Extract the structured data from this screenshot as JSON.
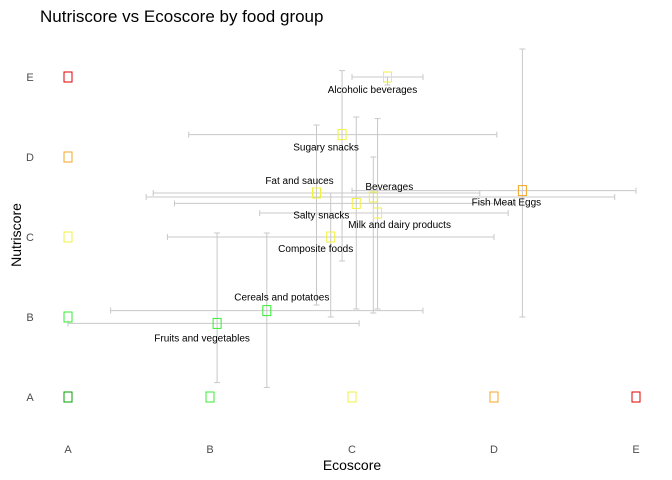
{
  "chart_data": {
    "type": "scatter",
    "title": "Nutriscore vs Ecoscore by food group",
    "xlabel": "Ecoscore",
    "ylabel": "Nutriscore",
    "x_ticks": [
      "A",
      "B",
      "C",
      "D",
      "E"
    ],
    "y_ticks": [
      "A",
      "B",
      "C",
      "D",
      "E"
    ],
    "xlim": [
      0.7,
      5.1
    ],
    "ylim": [
      0.6,
      5.4
    ],
    "grid": false,
    "axis_marker_colors": {
      "A": "#00a000",
      "B": "#33ee33",
      "C": "#f0f040",
      "D": "#f5a623",
      "E": "#e00000"
    },
    "error_bar_color": "#c8c8c8",
    "points": [
      {
        "label": "Fruits and vegetables",
        "x": 2.05,
        "y": 1.92,
        "x_err": [
          1.0,
          3.05
        ],
        "y_err": [
          1.18,
          3.05
        ],
        "color": "#33ee33"
      },
      {
        "label": "Cereals and potatoes",
        "x": 2.4,
        "y": 2.08,
        "x_err": [
          1.3,
          3.5
        ],
        "y_err": [
          1.12,
          3.05
        ],
        "color": "#33ee33"
      },
      {
        "label": "Composite foods",
        "x": 2.85,
        "y": 3.0,
        "x_err": [
          1.7,
          4.0
        ],
        "y_err": [
          2.0,
          3.55
        ],
        "color": "#f0f040"
      },
      {
        "label": "Fat and sauces",
        "x": 2.75,
        "y": 3.55,
        "x_err": [
          1.6,
          3.9
        ],
        "y_err": [
          2.15,
          4.4
        ],
        "color": "#f0f040"
      },
      {
        "label": "Salty snacks",
        "x": 3.03,
        "y": 3.42,
        "x_err": [
          1.75,
          4.15
        ],
        "y_err": [
          2.1,
          4.5
        ],
        "color": "#f0f040"
      },
      {
        "label": "Beverages",
        "x": 3.15,
        "y": 3.5,
        "x_err": [
          1.55,
          4.85
        ],
        "y_err": [
          2.05,
          4.0
        ],
        "color": "#f0f040"
      },
      {
        "label": "Milk and dairy products",
        "x": 3.18,
        "y": 3.3,
        "x_err": [
          2.35,
          4.1
        ],
        "y_err": [
          2.1,
          4.48
        ],
        "color": "#f0f040"
      },
      {
        "label": "Sugary snacks",
        "x": 2.93,
        "y": 4.28,
        "x_err": [
          1.85,
          4.02
        ],
        "y_err": [
          2.7,
          5.08
        ],
        "color": "#f0f040"
      },
      {
        "label": "Alcoholic beverages",
        "x": 3.25,
        "y": 5.0,
        "x_err": [
          3.0,
          3.5
        ],
        "y_err": [
          4.9,
          5.0
        ],
        "color": "#f0f040"
      },
      {
        "label": "Fish Meat Eggs",
        "x": 4.2,
        "y": 3.58,
        "x_err": [
          3.0,
          5.0
        ],
        "y_err": [
          2.0,
          5.35
        ],
        "color": "#f5a623"
      }
    ]
  }
}
